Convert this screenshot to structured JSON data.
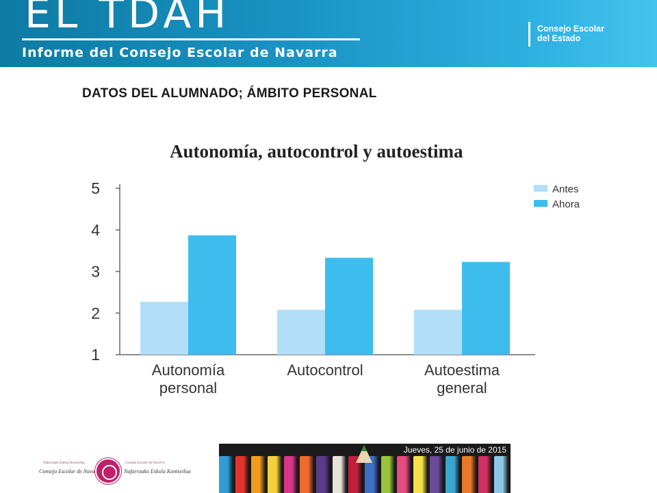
{
  "header": {
    "title": "EL TDAH",
    "subtitle": "Informe del Consejo Escolar de Navarra",
    "org_line1": "Consejo Escolar",
    "org_line2": "del Estado"
  },
  "section_title": "DATOS DEL ALUMNADO; ÁMBITO PERSONAL",
  "chart_data": {
    "type": "bar",
    "title": "Autonomía, autocontrol y autoestima",
    "xlabel": "",
    "ylabel": "",
    "categories": [
      [
        "Autonomía",
        "personal"
      ],
      [
        "Autocontrol"
      ],
      [
        "Autoestima",
        "general"
      ]
    ],
    "series": [
      {
        "name": "Antes",
        "color": "#b1dff7",
        "values": [
          2.27,
          2.08,
          2.08
        ]
      },
      {
        "name": "Ahora",
        "color": "#3cbdee",
        "values": [
          3.87,
          3.33,
          3.23
        ]
      }
    ],
    "ylim": [
      1,
      5
    ],
    "yticks": [
      "1",
      "2",
      "3",
      "4",
      "5"
    ],
    "grid": false,
    "legend": "top-right"
  },
  "footer": {
    "logo_left_line1": "Consejo Escolar de Navarra",
    "logo_left_small": "Nafarroako Eskola Kontseilua",
    "logo_right_line1": "Nafarroako Eskola Kontseilua",
    "logo_right_small": "Consejo Escolar de Navarra",
    "banner_date": "Jueves, 25 de junio de 2015",
    "pencil_colors": [
      "#2f9dd6",
      "#e4322b",
      "#f29b1d",
      "#f4d03f",
      "#d8358a",
      "#f06a2c",
      "#5c3b8c",
      "#e8e3da",
      "#c21f3b",
      "#3a6fc4",
      "#9ac43c",
      "#e84b7f",
      "#f6e04a",
      "#6b4a9c",
      "#3aa6d0",
      "#e87a2a",
      "#d03060",
      "#8fc7e8"
    ]
  }
}
